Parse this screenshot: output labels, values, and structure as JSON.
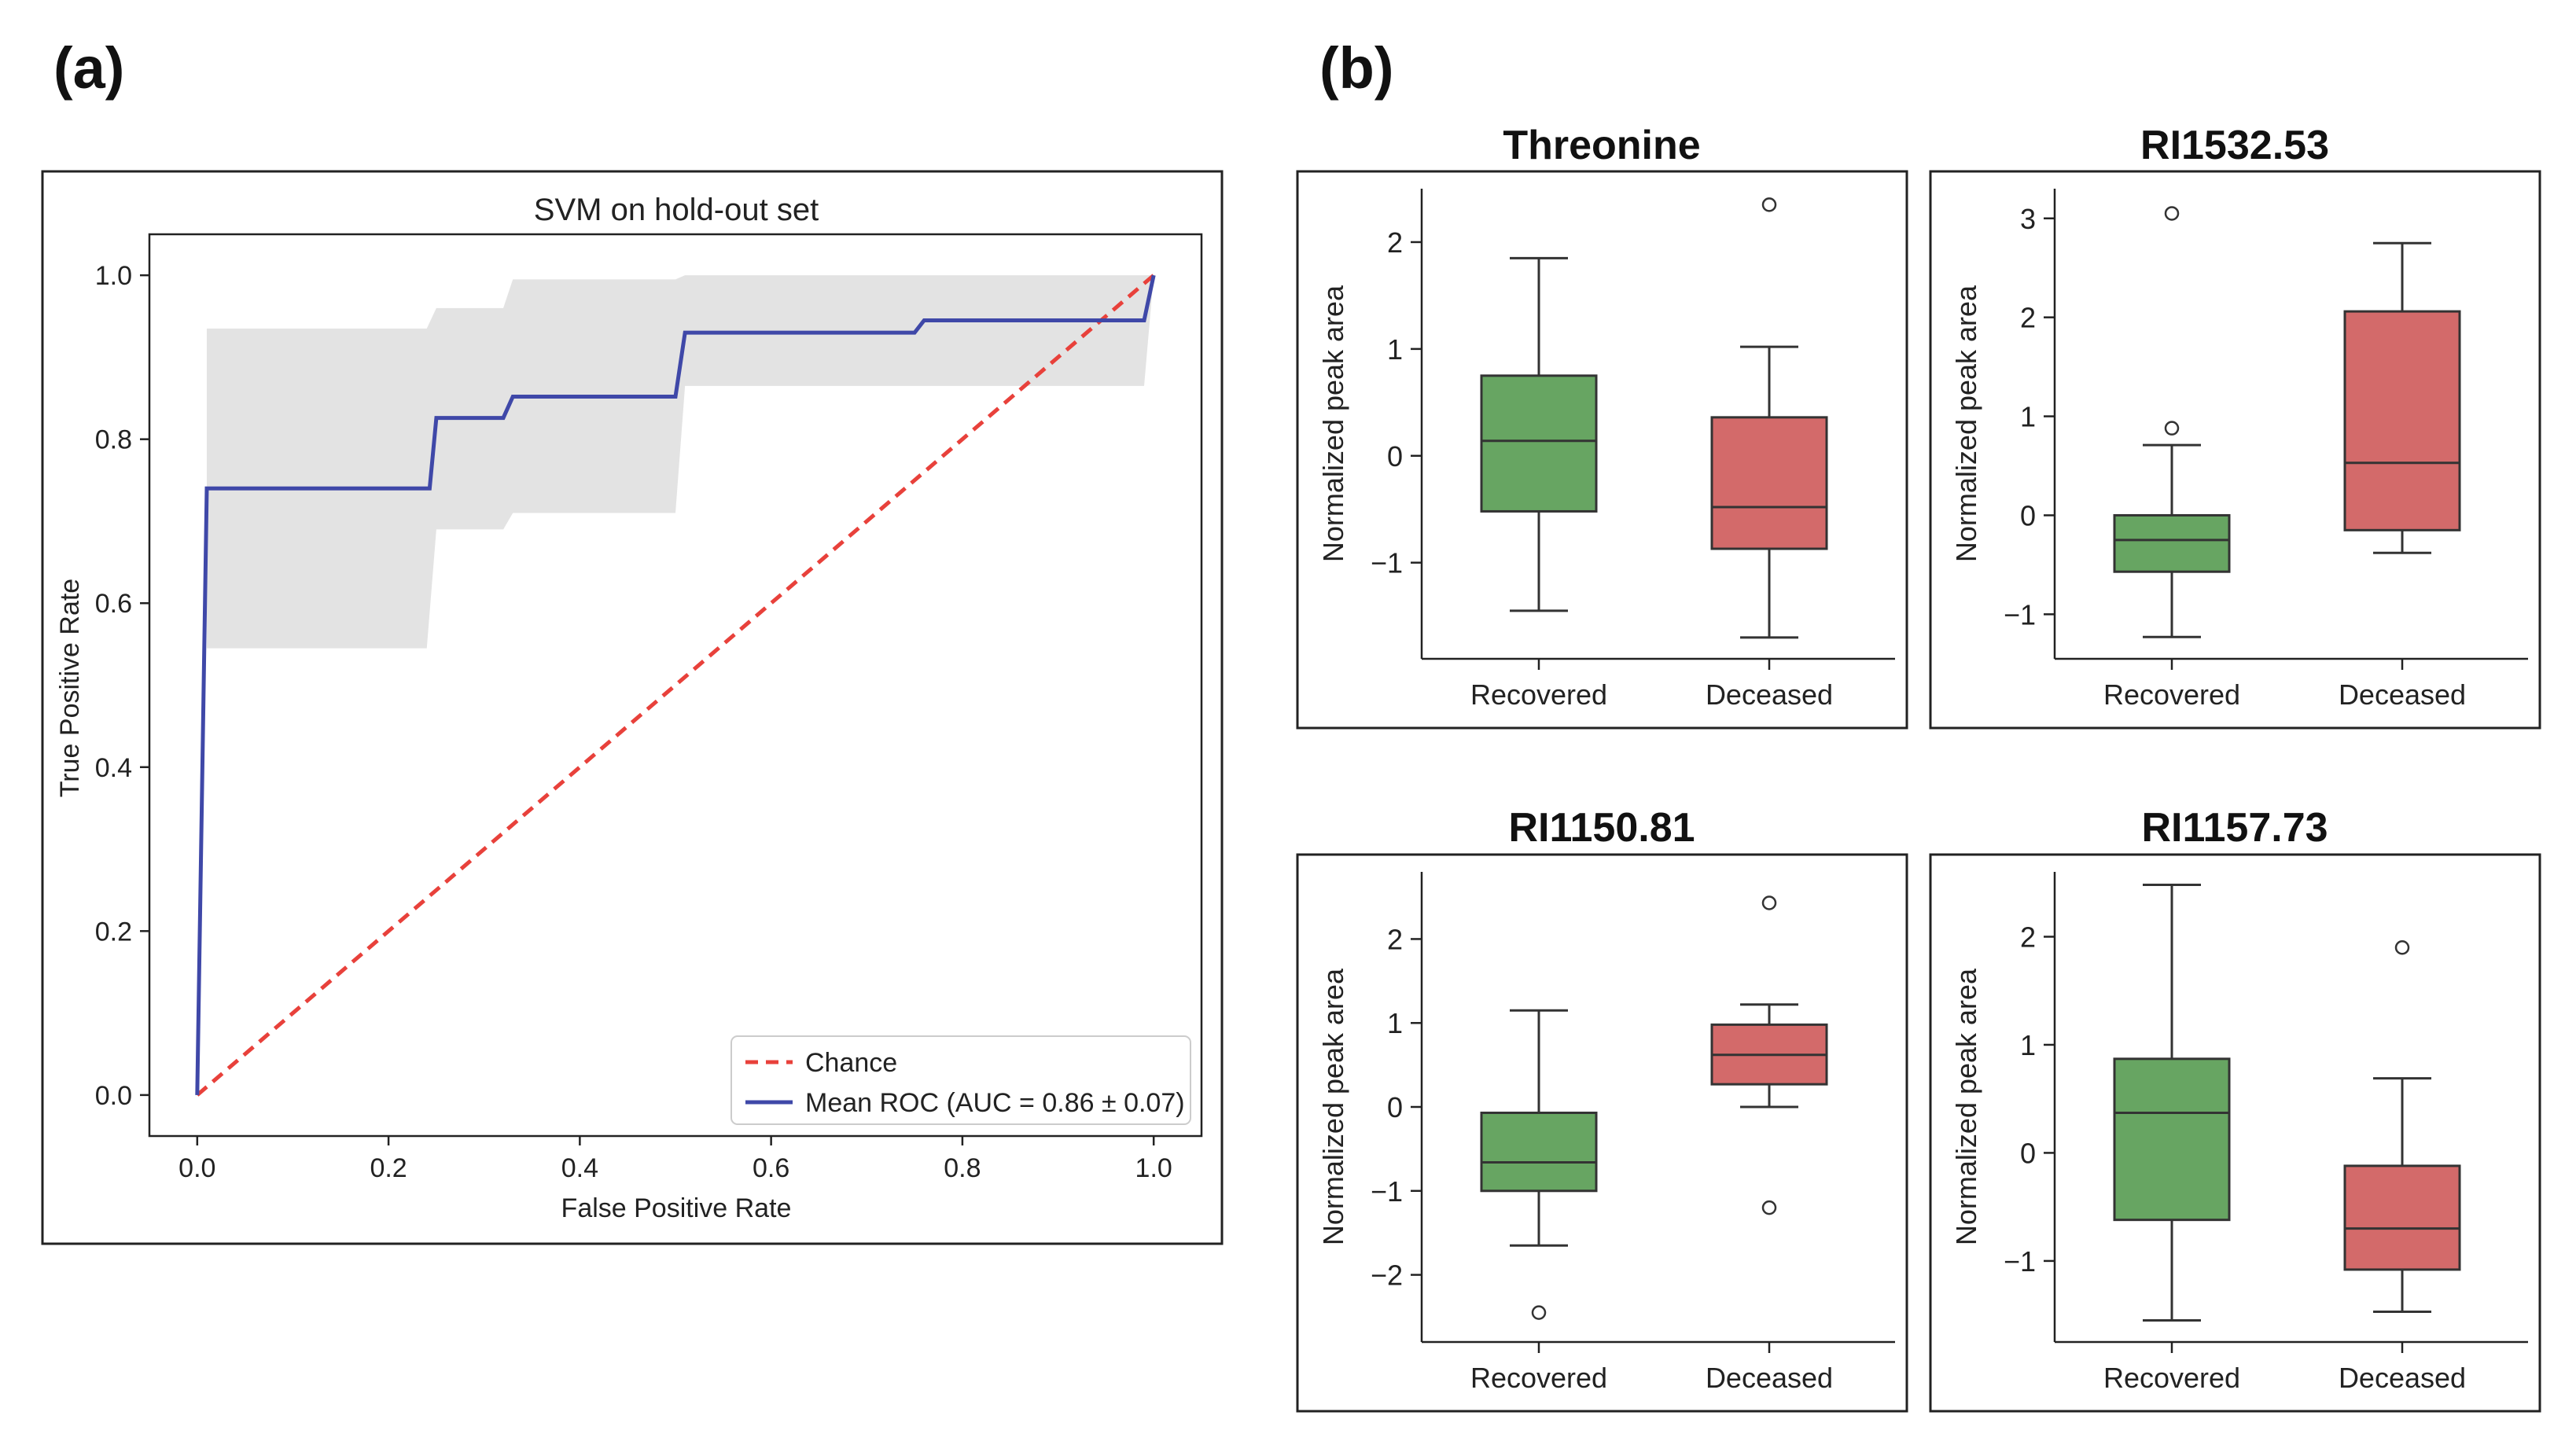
{
  "panel_labels": {
    "a": "(a)",
    "b": "(b)"
  },
  "colors": {
    "roc_line": "#3f48a8",
    "chance_line": "#e8413b",
    "band": "#e3e3e3",
    "recovered": "#67a562",
    "deceased": "#d36a6a",
    "frame": "#222222"
  },
  "chart_data": [
    {
      "type": "line",
      "title": "SVM on hold-out set",
      "xlabel": "False Positive Rate",
      "ylabel": "True Positive Rate",
      "xlim": [
        -0.05,
        1.05
      ],
      "ylim": [
        -0.05,
        1.05
      ],
      "xticks": [
        0.0,
        0.2,
        0.4,
        0.6,
        0.8,
        1.0
      ],
      "xtick_labels": [
        "0.0",
        "0.2",
        "0.4",
        "0.6",
        "0.8",
        "1.0"
      ],
      "yticks": [
        0.0,
        0.2,
        0.4,
        0.6,
        0.8,
        1.0
      ],
      "ytick_labels": [
        "0.0",
        "0.2",
        "0.4",
        "0.6",
        "0.8",
        "1.0"
      ],
      "series": [
        {
          "name": "Chance",
          "style": "dashed",
          "x": [
            0,
            1
          ],
          "y": [
            0,
            1
          ]
        },
        {
          "name": "Mean ROC (AUC = 0.86 ± 0.07)",
          "style": "solid",
          "x": [
            0,
            0.01,
            0.243,
            0.25,
            0.32,
            0.33,
            0.5,
            0.51,
            0.75,
            0.76,
            0.99,
            1.0
          ],
          "y": [
            0,
            0.74,
            0.74,
            0.826,
            0.826,
            0.852,
            0.852,
            0.93,
            0.93,
            0.945,
            0.945,
            1.0
          ]
        }
      ],
      "band": {
        "x": [
          0.01,
          0.24,
          0.25,
          0.32,
          0.33,
          0.5,
          0.51,
          0.99,
          1.0
        ],
        "upper": [
          0.935,
          0.935,
          0.96,
          0.96,
          0.995,
          0.995,
          1.0,
          1.0,
          1.0
        ],
        "lower": [
          0.545,
          0.545,
          0.69,
          0.69,
          0.71,
          0.71,
          0.865,
          0.865,
          1.0
        ]
      },
      "legend": [
        "Chance",
        "Mean ROC (AUC = 0.86 ± 0.07)"
      ],
      "legend_position": "lower-right"
    },
    {
      "type": "box",
      "title": "Threonine",
      "ylabel": "Normalized peak area",
      "categories": [
        "Recovered",
        "Deceased"
      ],
      "ylim": [
        -1.9,
        2.5
      ],
      "yticks": [
        -1,
        0,
        1,
        2
      ],
      "ytick_labels": [
        "−1",
        "0",
        "1",
        "2"
      ],
      "boxes": [
        {
          "name": "Recovered",
          "whisker_low": -1.45,
          "q1": -0.52,
          "median": 0.14,
          "q3": 0.75,
          "whisker_high": 1.85,
          "outliers": []
        },
        {
          "name": "Deceased",
          "whisker_low": -1.7,
          "q1": -0.87,
          "median": -0.48,
          "q3": 0.36,
          "whisker_high": 1.02,
          "outliers": [
            2.35
          ]
        }
      ]
    },
    {
      "type": "box",
      "title": "RI1532.53",
      "ylabel": "Normalized peak area",
      "categories": [
        "Recovered",
        "Deceased"
      ],
      "ylim": [
        -1.45,
        3.3
      ],
      "yticks": [
        -1,
        0,
        1,
        2,
        3
      ],
      "ytick_labels": [
        "−1",
        "0",
        "1",
        "2",
        "3"
      ],
      "boxes": [
        {
          "name": "Recovered",
          "whisker_low": -1.23,
          "q1": -0.57,
          "median": -0.25,
          "q3": 0.0,
          "whisker_high": 0.71,
          "outliers": [
            0.88,
            3.05
          ]
        },
        {
          "name": "Deceased",
          "whisker_low": -0.38,
          "q1": -0.15,
          "median": 0.53,
          "q3": 2.06,
          "whisker_high": 2.75,
          "outliers": []
        }
      ]
    },
    {
      "type": "box",
      "title": "RI1150.81",
      "ylabel": "Normalized peak area",
      "categories": [
        "Recovered",
        "Deceased"
      ],
      "ylim": [
        -2.8,
        2.8
      ],
      "yticks": [
        -2,
        -1,
        0,
        1,
        2
      ],
      "ytick_labels": [
        "−2",
        "−1",
        "0",
        "1",
        "2"
      ],
      "boxes": [
        {
          "name": "Recovered",
          "whisker_low": -1.65,
          "q1": -1.0,
          "median": -0.66,
          "q3": -0.07,
          "whisker_high": 1.15,
          "outliers": [
            -2.45
          ]
        },
        {
          "name": "Deceased",
          "whisker_low": 0.0,
          "q1": 0.27,
          "median": 0.62,
          "q3": 0.98,
          "whisker_high": 1.22,
          "outliers": [
            2.43,
            -1.2
          ]
        }
      ]
    },
    {
      "type": "box",
      "title": "RI1157.73",
      "ylabel": "Normalized peak area",
      "categories": [
        "Recovered",
        "Deceased"
      ],
      "ylim": [
        -1.75,
        2.6
      ],
      "yticks": [
        -1,
        0,
        1,
        2
      ],
      "ytick_labels": [
        "−1",
        "0",
        "1",
        "2"
      ],
      "boxes": [
        {
          "name": "Recovered",
          "whisker_low": -1.55,
          "q1": -0.62,
          "median": 0.37,
          "q3": 0.87,
          "whisker_high": 2.48,
          "outliers": []
        },
        {
          "name": "Deceased",
          "whisker_low": -1.47,
          "q1": -1.08,
          "median": -0.7,
          "q3": -0.12,
          "whisker_high": 0.69,
          "outliers": [
            1.9
          ]
        }
      ]
    }
  ]
}
